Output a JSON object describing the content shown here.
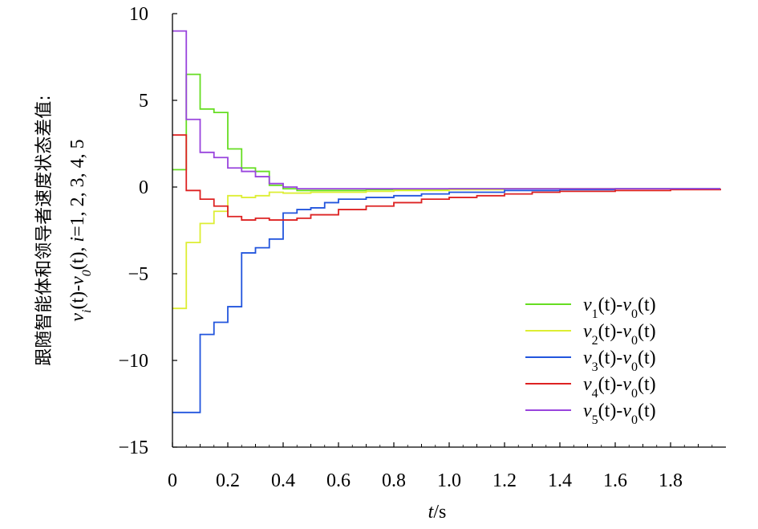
{
  "chart_data": {
    "type": "line",
    "title": "",
    "xlabel": "t/s",
    "xlabel_parts": [
      "t",
      "/s"
    ],
    "ylabel_lines": [
      "跟随智能体和领导者速度状态差值:",
      "vi(t)-v0(t), i=1, 2, 3, 4, 5"
    ],
    "ylabel_line1": "跟随智能体和领导者速度状态差值:",
    "ylabel_line2_parts": [
      "v",
      "i",
      "(t)-",
      "v",
      "0",
      "(t), ",
      "i",
      "=1, 2, 3, 4, 5"
    ],
    "xlim": [
      0,
      2.0
    ],
    "ylim": [
      -15,
      10
    ],
    "xticks": [
      0,
      0.2,
      0.4,
      0.6,
      0.8,
      1.0,
      1.2,
      1.4,
      1.6,
      1.8
    ],
    "xtick_labels": [
      "0",
      "0.2",
      "0.4",
      "0.6",
      "0.8",
      "1.0",
      "1.2",
      "1.4",
      "1.6",
      "1.8"
    ],
    "yticks": [
      10,
      5,
      0,
      -5,
      -10,
      -15
    ],
    "ytick_labels": [
      "10",
      "5",
      "0",
      "−5",
      "−10",
      "−15"
    ],
    "legend_position": "lower-right",
    "series": [
      {
        "name": "v1(t)-v0(t)",
        "label_parts": [
          "v",
          "1",
          "(t)-",
          "v",
          "0",
          "(t)"
        ],
        "color": "#66dd22",
        "x": [
          0,
          0.05,
          0.1,
          0.15,
          0.2,
          0.25,
          0.3,
          0.35,
          0.4,
          0.45,
          0.5,
          0.6,
          0.7,
          0.8,
          0.9,
          1.0,
          1.2,
          1.4,
          1.6,
          1.8,
          1.98
        ],
        "y": [
          1.0,
          6.5,
          4.5,
          4.3,
          2.2,
          1.1,
          0.9,
          0.1,
          -0.1,
          -0.2,
          -0.2,
          -0.2,
          -0.15,
          -0.15,
          -0.15,
          -0.1,
          -0.1,
          -0.1,
          -0.1,
          -0.1,
          -0.1
        ]
      },
      {
        "name": "v2(t)-v0(t)",
        "label_parts": [
          "v",
          "2",
          "(t)-",
          "v",
          "0",
          "(t)"
        ],
        "color": "#ddee33",
        "x": [
          0,
          0.05,
          0.1,
          0.15,
          0.2,
          0.25,
          0.3,
          0.35,
          0.4,
          0.45,
          0.5,
          0.6,
          0.7,
          0.8,
          0.9,
          1.0,
          1.2,
          1.4,
          1.6,
          1.8,
          1.98
        ],
        "y": [
          -7.0,
          -3.2,
          -2.1,
          -1.4,
          -0.5,
          -0.6,
          -0.5,
          -0.3,
          -0.35,
          -0.35,
          -0.3,
          -0.3,
          -0.25,
          -0.2,
          -0.2,
          -0.15,
          -0.1,
          -0.1,
          -0.1,
          -0.1,
          -0.1
        ]
      },
      {
        "name": "v3(t)-v0(t)",
        "label_parts": [
          "v",
          "3",
          "(t)-",
          "v",
          "0",
          "(t)"
        ],
        "color": "#2255dd",
        "x": [
          0,
          0.05,
          0.1,
          0.15,
          0.2,
          0.25,
          0.3,
          0.35,
          0.4,
          0.45,
          0.5,
          0.55,
          0.6,
          0.7,
          0.8,
          0.9,
          1.0,
          1.2,
          1.4,
          1.6,
          1.8,
          1.98
        ],
        "y": [
          -13.0,
          -13.0,
          -8.5,
          -7.8,
          -6.9,
          -3.8,
          -3.5,
          -3.0,
          -1.5,
          -1.3,
          -1.2,
          -0.9,
          -0.7,
          -0.6,
          -0.5,
          -0.4,
          -0.3,
          -0.2,
          -0.15,
          -0.1,
          -0.1,
          -0.1
        ]
      },
      {
        "name": "v4(t)-v0(t)",
        "label_parts": [
          "v",
          "4",
          "(t)-",
          "v",
          "0",
          "(t)"
        ],
        "color": "#dd2222",
        "x": [
          0,
          0.05,
          0.1,
          0.15,
          0.2,
          0.25,
          0.3,
          0.35,
          0.4,
          0.45,
          0.5,
          0.6,
          0.7,
          0.8,
          0.9,
          1.0,
          1.1,
          1.2,
          1.3,
          1.4,
          1.6,
          1.8,
          1.98
        ],
        "y": [
          3.0,
          -0.2,
          -0.7,
          -1.1,
          -1.7,
          -1.9,
          -1.8,
          -1.9,
          -1.9,
          -1.8,
          -1.6,
          -1.3,
          -1.1,
          -0.9,
          -0.7,
          -0.6,
          -0.5,
          -0.4,
          -0.3,
          -0.25,
          -0.2,
          -0.15,
          -0.1
        ]
      },
      {
        "name": "v5(t)-v0(t)",
        "label_parts": [
          "v",
          "5",
          "(t)-",
          "v",
          "0",
          "(t)"
        ],
        "color": "#9944dd",
        "x": [
          0,
          0.05,
          0.1,
          0.15,
          0.2,
          0.25,
          0.3,
          0.35,
          0.4,
          0.45,
          0.5,
          0.6,
          0.7,
          0.8,
          0.9,
          1.0,
          1.2,
          1.4,
          1.6,
          1.8,
          1.98
        ],
        "y": [
          9.0,
          3.9,
          2.0,
          1.7,
          1.1,
          0.9,
          0.6,
          0.2,
          0.0,
          -0.1,
          -0.1,
          -0.1,
          -0.1,
          -0.1,
          -0.1,
          -0.1,
          -0.1,
          -0.1,
          -0.1,
          -0.1,
          -0.1
        ]
      }
    ]
  }
}
